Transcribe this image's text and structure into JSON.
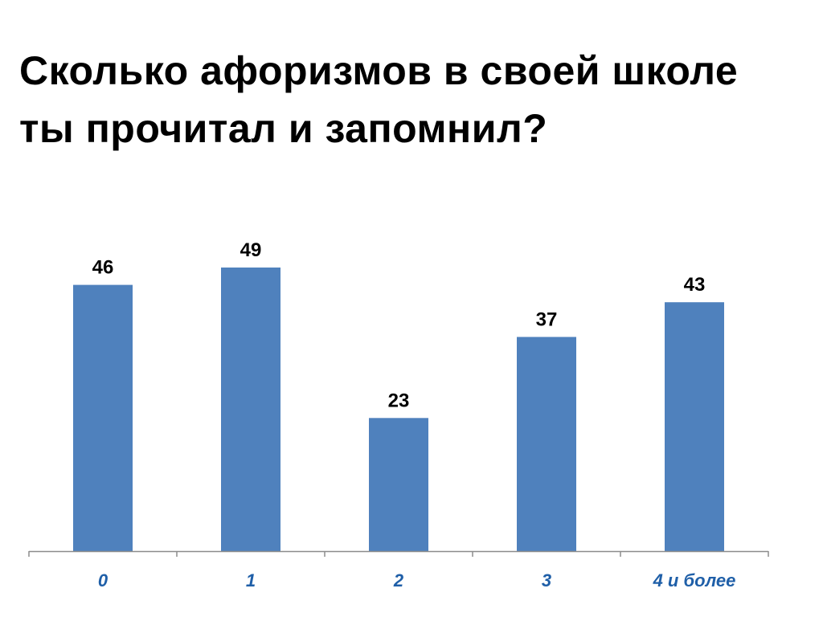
{
  "slide": {
    "title_line1": "Сколько афоризмов в своей школе",
    "title_line2": "ты прочитал и запомнил?"
  },
  "colors": {
    "bar": "#4f81bd",
    "tick_label": "#1f5fa8",
    "axis": "#8c8c8c",
    "text": "#000000"
  },
  "chart_data": {
    "type": "bar",
    "title": "",
    "xlabel": "",
    "ylabel": "",
    "categories": [
      "0",
      "1",
      "2",
      "3",
      "4 и более"
    ],
    "values": [
      46,
      49,
      23,
      37,
      43
    ],
    "data_labels": [
      "46",
      "49",
      "23",
      "37",
      "43"
    ],
    "ylim": [
      0,
      49
    ],
    "grid": false,
    "legend": "none"
  }
}
